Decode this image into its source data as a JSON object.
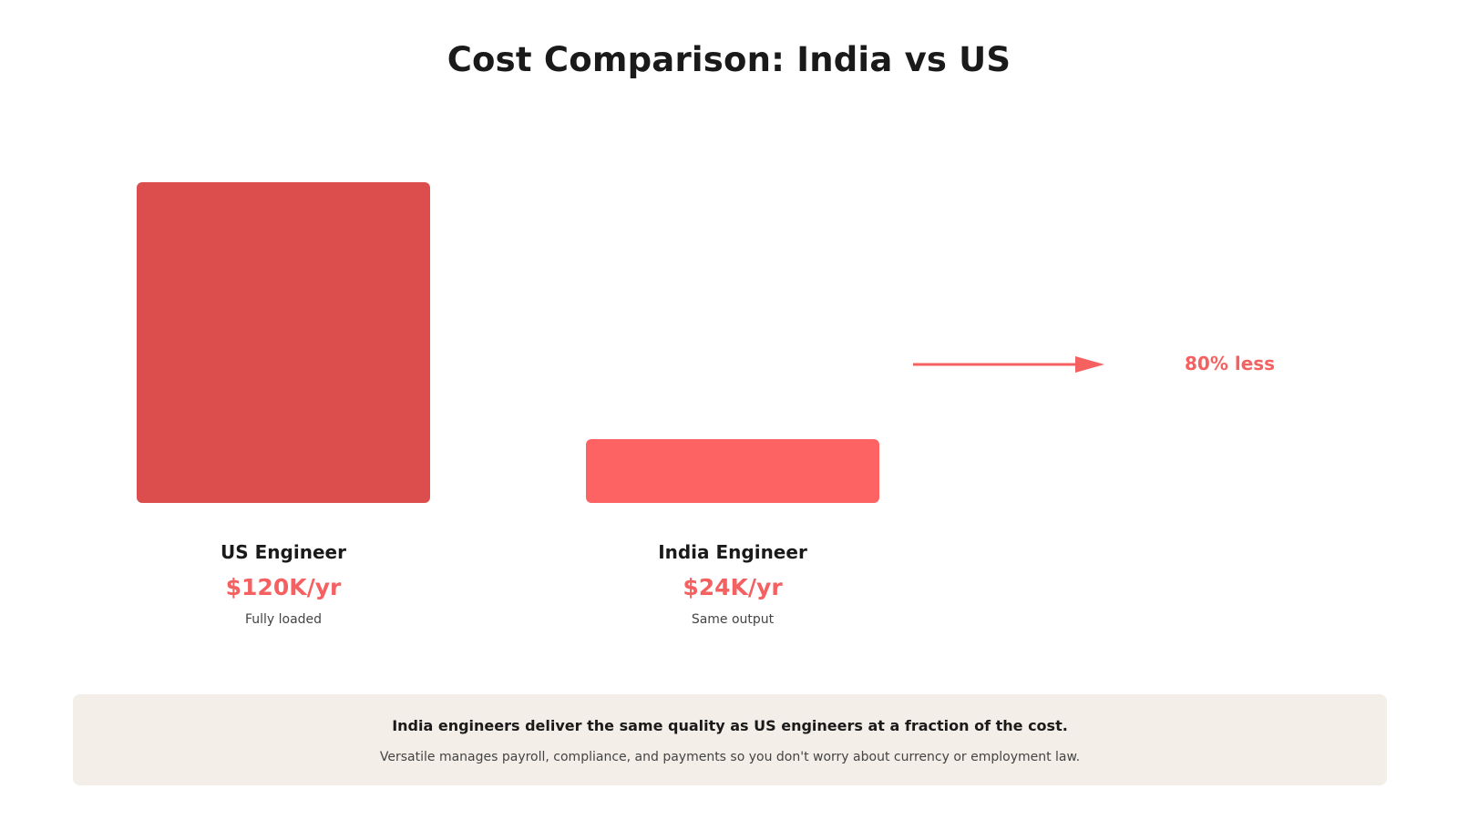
{
  "title": "Cost Comparison: India vs US",
  "chart_data": {
    "type": "bar",
    "categories": [
      "US Engineer",
      "India Engineer"
    ],
    "values": [
      120,
      24
    ],
    "value_labels": [
      "$120K/yr",
      "$24K/yr"
    ],
    "notes": [
      "Fully loaded",
      "Same output"
    ],
    "annotation": "80% less",
    "title": "Cost Comparison: India vs US",
    "xlabel": "",
    "ylabel": "",
    "ylim": [
      0,
      120
    ],
    "grid": false
  },
  "footer": {
    "headline": "India engineers deliver the same quality as US engineers at a fraction of the cost.",
    "subtext": "Versatile manages payroll, compliance, and payments so you don't worry about currency or employment law."
  },
  "colors": {
    "us_bar": "#dc4e4e",
    "india_bar": "#fe6363",
    "accent": "#f56060",
    "footer_bg": "#f3eee7"
  }
}
